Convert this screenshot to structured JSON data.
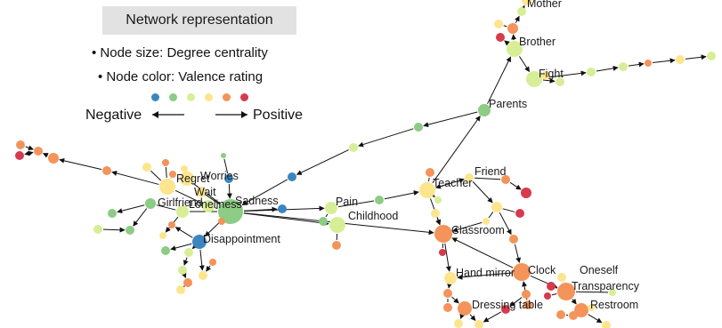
{
  "legend": {
    "title": "Network representation",
    "line1": "• Node size: Degree centrality",
    "line2": "• Node color: Valence rating",
    "negative": "Negative",
    "positive": "Positive",
    "scale_colors": [
      "#3b86c0",
      "#8ccc84",
      "#d7ee96",
      "#fde58e",
      "#f4935a",
      "#d63a4c"
    ]
  },
  "colors": {
    "v1": "#3b86c0",
    "v2": "#8ccc84",
    "v3": "#d7ee96",
    "v4": "#fde58e",
    "v5": "#f4935a",
    "v6": "#d63a4c"
  },
  "node_labels": {
    "mother": "Mother",
    "brother": "Brother",
    "fight": "Fight",
    "parents": "Parents",
    "friend": "Friend",
    "teacher": "Teacher",
    "worries": "Worries",
    "regret": "Regret",
    "wait": "Wait",
    "girlfriend": "Girlfriend",
    "loneliness": "Loneliness",
    "sadness": "Sadness",
    "disappointment": "Disappointment",
    "pain": "Pain",
    "childhood": "Childhood",
    "classroom": "Classroom",
    "hand_mirror": "Hand mirror",
    "clock": "Clock",
    "oneself": "Oneself",
    "transparency": "Transparency",
    "dressing_table": "Dressing table",
    "restroom": "Restroom"
  }
}
